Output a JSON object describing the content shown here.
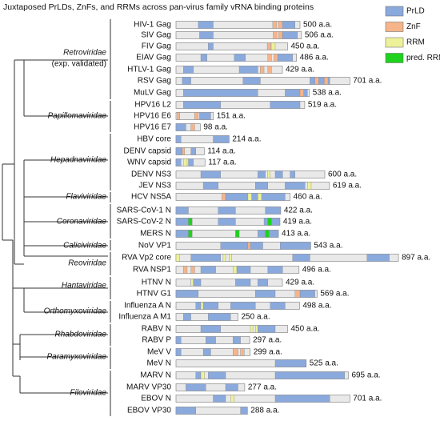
{
  "title": "Juxtaposed PrLDs, ZnFs, and RRMs across pan-virus family vRNA binding proteins",
  "legend": [
    {
      "label": "PrLD",
      "color": "#8aa9dc"
    },
    {
      "label": "ZnF",
      "color": "#f6b48a"
    },
    {
      "label": "RRM",
      "color": "#edf29a"
    },
    {
      "label": "pred. RRM",
      "color": "#1ed21e"
    }
  ],
  "families": [
    {
      "name": "Retroviridae",
      "note": "(exp. validated)"
    },
    {
      "name": "Papillomaviridae"
    },
    {
      "name": "Hepadnaviridae"
    },
    {
      "name": "Flaviviridae"
    },
    {
      "name": "Coronaviridae"
    },
    {
      "name": "Caliciviridae"
    },
    {
      "name": "Reoviridae"
    },
    {
      "name": "Hantaviridae"
    },
    {
      "name": "Orthomyxoviridae"
    },
    {
      "name": "Rhabdoviridae"
    },
    {
      "name": "Paramyxoviridae"
    },
    {
      "name": "Filoviridae"
    }
  ],
  "proteins": [
    {
      "name": "HIV-1 Gag",
      "length": 500,
      "length_label": "500 a.a.",
      "domains": [
        {
          "type": "PrLD",
          "start": 90,
          "end": 150
        },
        {
          "type": "PrLD",
          "start": 430,
          "end": 480
        },
        {
          "type": "ZnF",
          "start": 390,
          "end": 405
        },
        {
          "type": "ZnF",
          "start": 412,
          "end": 427
        }
      ]
    },
    {
      "name": "SIV Gag",
      "length": 506,
      "length_label": "506 a.a.",
      "domains": [
        {
          "type": "PrLD",
          "start": 95,
          "end": 150
        },
        {
          "type": "PrLD",
          "start": 430,
          "end": 490
        },
        {
          "type": "ZnF",
          "start": 392,
          "end": 407
        },
        {
          "type": "ZnF",
          "start": 414,
          "end": 429
        }
      ]
    },
    {
      "name": "FIV Gag",
      "length": 450,
      "length_label": "450 a.a.",
      "domains": [
        {
          "type": "PrLD",
          "start": 130,
          "end": 150
        },
        {
          "type": "ZnF",
          "start": 368,
          "end": 382
        },
        {
          "type": "RRM",
          "start": 384,
          "end": 400
        }
      ]
    },
    {
      "name": "EIAV Gag",
      "length": 486,
      "length_label": "486 a.a.",
      "domains": [
        {
          "type": "PrLD",
          "start": 100,
          "end": 125
        },
        {
          "type": "PrLD",
          "start": 235,
          "end": 280
        },
        {
          "type": "PrLD",
          "start": 400,
          "end": 470
        },
        {
          "type": "ZnF",
          "start": 370,
          "end": 385
        },
        {
          "type": "ZnF",
          "start": 395,
          "end": 410
        }
      ]
    },
    {
      "name": "HTLV-1 Gag",
      "length": 429,
      "length_label": "429 a.a.",
      "domains": [
        {
          "type": "PrLD",
          "start": 30,
          "end": 70
        },
        {
          "type": "PrLD",
          "start": 255,
          "end": 330
        },
        {
          "type": "ZnF",
          "start": 340,
          "end": 355
        },
        {
          "type": "ZnF",
          "start": 370,
          "end": 385
        }
      ]
    },
    {
      "name": "RSV Gag",
      "length": 701,
      "length_label": "701 a.a.",
      "domains": [
        {
          "type": "PrLD",
          "start": 25,
          "end": 60
        },
        {
          "type": "PrLD",
          "start": 270,
          "end": 340
        },
        {
          "type": "PrLD",
          "start": 540,
          "end": 620
        },
        {
          "type": "ZnF",
          "start": 560,
          "end": 575
        },
        {
          "type": "ZnF",
          "start": 598,
          "end": 613
        }
      ]
    },
    {
      "name": "MuLV Gag",
      "length": 538,
      "length_label": "538 a.a.",
      "domains": [
        {
          "type": "PrLD",
          "start": 30,
          "end": 330
        },
        {
          "type": "PrLD",
          "start": 440,
          "end": 530
        },
        {
          "type": "ZnF",
          "start": 500,
          "end": 515
        }
      ]
    },
    {
      "name": "HPV16 L2",
      "length": 519,
      "length_label": "519 a.a.",
      "domains": [
        {
          "type": "PrLD",
          "start": 30,
          "end": 180
        },
        {
          "type": "PrLD",
          "start": 380,
          "end": 500
        }
      ]
    },
    {
      "name": "HPV16 E6",
      "length": 151,
      "length_label": "151 a.a.",
      "domains": [
        {
          "type": "ZnF",
          "start": 5,
          "end": 15
        },
        {
          "type": "ZnF",
          "start": 75,
          "end": 90
        },
        {
          "type": "PrLD",
          "start": 95,
          "end": 140
        }
      ]
    },
    {
      "name": "HPV16 E7",
      "length": 98,
      "length_label": "98 a.a.",
      "domains": [
        {
          "type": "PrLD",
          "start": 0,
          "end": 40
        },
        {
          "type": "ZnF",
          "start": 60,
          "end": 75
        }
      ]
    },
    {
      "name": "HBV core",
      "length": 214,
      "length_label": "214 a.a.",
      "domains": [
        {
          "type": "PrLD",
          "start": 0,
          "end": 20
        },
        {
          "type": "PrLD",
          "start": 150,
          "end": 214
        }
      ]
    },
    {
      "name": "DENV capsid",
      "length": 114,
      "length_label": "114 a.a.",
      "domains": [
        {
          "type": "PrLD",
          "start": 0,
          "end": 25
        },
        {
          "type": "ZnF",
          "start": 25,
          "end": 35
        },
        {
          "type": "PrLD",
          "start": 60,
          "end": 80
        }
      ]
    },
    {
      "name": "WNV capsid",
      "length": 117,
      "length_label": "117 a.a.",
      "domains": [
        {
          "type": "PrLD",
          "start": 0,
          "end": 20
        },
        {
          "type": "RRM",
          "start": 30,
          "end": 45
        },
        {
          "type": "PrLD",
          "start": 50,
          "end": 70
        }
      ]
    },
    {
      "name": "DENV NS3",
      "length": 600,
      "length_label": "600 a.a.",
      "domains": [
        {
          "type": "PrLD",
          "start": 100,
          "end": 180
        },
        {
          "type": "PrLD",
          "start": 330,
          "end": 360
        },
        {
          "type": "RRM",
          "start": 370,
          "end": 380
        },
        {
          "type": "PrLD",
          "start": 400,
          "end": 430
        },
        {
          "type": "PrLD",
          "start": 460,
          "end": 480
        }
      ]
    },
    {
      "name": "JEV NS3",
      "length": 619,
      "length_label": "619 a.a.",
      "domains": [
        {
          "type": "PrLD",
          "start": 110,
          "end": 170
        },
        {
          "type": "PrLD",
          "start": 320,
          "end": 370
        },
        {
          "type": "PrLD",
          "start": 440,
          "end": 520
        },
        {
          "type": "RRM",
          "start": 530,
          "end": 545
        }
      ]
    },
    {
      "name": "HCV NS5A",
      "length": 460,
      "length_label": "460 a.a.",
      "domains": [
        {
          "type": "PrLD",
          "start": 200,
          "end": 440
        },
        {
          "type": "ZnF",
          "start": 185,
          "end": 200
        },
        {
          "type": "RRM",
          "start": 290,
          "end": 305
        },
        {
          "type": "RRM",
          "start": 330,
          "end": 345
        }
      ]
    },
    {
      "name": "SARS-CoV-1 N",
      "length": 422,
      "length_label": "422 a.a.",
      "domains": [
        {
          "type": "PrLD",
          "start": 0,
          "end": 50
        },
        {
          "type": "PrLD",
          "start": 170,
          "end": 240
        },
        {
          "type": "PrLD",
          "start": 360,
          "end": 422
        }
      ]
    },
    {
      "name": "SARS-CoV-2 N",
      "length": 419,
      "length_label": "419 a.a.",
      "domains": [
        {
          "type": "PrLD",
          "start": 0,
          "end": 50
        },
        {
          "type": "pred. RRM",
          "start": 50,
          "end": 65
        },
        {
          "type": "PrLD",
          "start": 170,
          "end": 240
        },
        {
          "type": "PrLD",
          "start": 355,
          "end": 419
        },
        {
          "type": "pred. RRM",
          "start": 370,
          "end": 385
        }
      ]
    },
    {
      "name": "MERS N",
      "length": 413,
      "length_label": "413 a.a.",
      "domains": [
        {
          "type": "PrLD",
          "start": 0,
          "end": 50
        },
        {
          "type": "pred. RRM",
          "start": 50,
          "end": 65
        },
        {
          "type": "pred. RRM",
          "start": 240,
          "end": 255
        },
        {
          "type": "PrLD",
          "start": 330,
          "end": 413
        },
        {
          "type": "pred. RRM",
          "start": 360,
          "end": 375
        }
      ]
    },
    {
      "name": "NoV VP1",
      "length": 543,
      "length_label": "543 a.a.",
      "domains": [
        {
          "type": "PrLD",
          "start": 180,
          "end": 350
        },
        {
          "type": "ZnF",
          "start": 290,
          "end": 300
        },
        {
          "type": "PrLD",
          "start": 420,
          "end": 543
        }
      ]
    },
    {
      "name": "RVA Vp2 core",
      "length": 897,
      "length_label": "897 a.a.",
      "domains": [
        {
          "type": "RRM",
          "start": 0,
          "end": 15
        },
        {
          "type": "PrLD",
          "start": 60,
          "end": 180
        },
        {
          "type": "RRM",
          "start": 190,
          "end": 200
        },
        {
          "type": "RRM",
          "start": 215,
          "end": 225
        },
        {
          "type": "PrLD",
          "start": 470,
          "end": 540
        },
        {
          "type": "PrLD",
          "start": 770,
          "end": 860
        }
      ]
    },
    {
      "name": "RVA NSP1",
      "length": 496,
      "length_label": "496 a.a.",
      "domains": [
        {
          "type": "ZnF",
          "start": 30,
          "end": 45
        },
        {
          "type": "ZnF",
          "start": 60,
          "end": 75
        },
        {
          "type": "PrLD",
          "start": 100,
          "end": 160
        },
        {
          "type": "PrLD",
          "start": 240,
          "end": 300
        },
        {
          "type": "RRM",
          "start": 230,
          "end": 245
        },
        {
          "type": "PrLD",
          "start": 370,
          "end": 430
        }
      ]
    },
    {
      "name": "HTNV N",
      "length": 429,
      "length_label": "429 a.a.",
      "domains": [
        {
          "type": "PrLD",
          "start": 60,
          "end": 100
        },
        {
          "type": "RRM",
          "start": 60,
          "end": 70
        },
        {
          "type": "PrLD",
          "start": 240,
          "end": 300
        },
        {
          "type": "PrLD",
          "start": 330,
          "end": 370
        }
      ]
    },
    {
      "name": "HTNV G1",
      "length": 569,
      "length_label": "569 a.a.",
      "domains": [
        {
          "type": "PrLD",
          "start": 0,
          "end": 90
        },
        {
          "type": "PrLD",
          "start": 320,
          "end": 400
        },
        {
          "type": "PrLD",
          "start": 500,
          "end": 560
        },
        {
          "type": "ZnF",
          "start": 480,
          "end": 500
        }
      ]
    },
    {
      "name": "Influenza A N",
      "length": 498,
      "length_label": "498 a.a.",
      "domains": [
        {
          "type": "PrLD",
          "start": 80,
          "end": 170
        },
        {
          "type": "RRM",
          "start": 100,
          "end": 110
        },
        {
          "type": "PrLD",
          "start": 220,
          "end": 320
        },
        {
          "type": "PrLD",
          "start": 380,
          "end": 440
        }
      ]
    },
    {
      "name": "Influenza A M1",
      "length": 250,
      "length_label": "250 a.a.",
      "domains": [
        {
          "type": "PrLD",
          "start": 30,
          "end": 60
        },
        {
          "type": "PrLD",
          "start": 130,
          "end": 220
        }
      ]
    },
    {
      "name": "RABV N",
      "length": 450,
      "length_label": "450 a.a.",
      "domains": [
        {
          "type": "PrLD",
          "start": 100,
          "end": 180
        },
        {
          "type": "PrLD",
          "start": 330,
          "end": 400
        },
        {
          "type": "RRM",
          "start": 300,
          "end": 310
        },
        {
          "type": "RRM",
          "start": 320,
          "end": 330
        }
      ]
    },
    {
      "name": "RABV P",
      "length": 297,
      "length_label": "297 a.a.",
      "domains": [
        {
          "type": "PrLD",
          "start": 0,
          "end": 20
        },
        {
          "type": "PrLD",
          "start": 120,
          "end": 160
        },
        {
          "type": "PrLD",
          "start": 230,
          "end": 260
        }
      ]
    },
    {
      "name": "MeV V",
      "length": 299,
      "length_label": "299 a.a.",
      "domains": [
        {
          "type": "PrLD",
          "start": 0,
          "end": 20
        },
        {
          "type": "PrLD",
          "start": 110,
          "end": 140
        },
        {
          "type": "ZnF",
          "start": 230,
          "end": 250
        },
        {
          "type": "ZnF",
          "start": 260,
          "end": 275
        }
      ]
    },
    {
      "name": "MeV N",
      "length": 525,
      "length_label": "525 a.a.",
      "domains": [
        {
          "type": "PrLD",
          "start": 400,
          "end": 525
        }
      ]
    },
    {
      "name": "MARV N",
      "length": 695,
      "length_label": "695 a.a.",
      "domains": [
        {
          "type": "PrLD",
          "start": 80,
          "end": 100
        },
        {
          "type": "RRM",
          "start": 100,
          "end": 115
        },
        {
          "type": "PrLD",
          "start": 130,
          "end": 200
        },
        {
          "type": "PrLD",
          "start": 400,
          "end": 680
        }
      ]
    },
    {
      "name": "MARV VP30",
      "length": 277,
      "length_label": "277 a.a.",
      "domains": [
        {
          "type": "PrLD",
          "start": 40,
          "end": 120
        },
        {
          "type": "PrLD",
          "start": 200,
          "end": 250
        }
      ]
    },
    {
      "name": "EBOV N",
      "length": 701,
      "length_label": "701 a.a.",
      "domains": [
        {
          "type": "PrLD",
          "start": 150,
          "end": 200
        },
        {
          "type": "RRM",
          "start": 220,
          "end": 235
        },
        {
          "type": "PrLD",
          "start": 400,
          "end": 620
        }
      ]
    },
    {
      "name": "EBOV VP30",
      "length": 288,
      "length_label": "288 a.a.",
      "domains": [
        {
          "type": "PrLD",
          "start": 0,
          "end": 80
        },
        {
          "type": "PrLD",
          "start": 260,
          "end": 288
        }
      ]
    }
  ]
}
